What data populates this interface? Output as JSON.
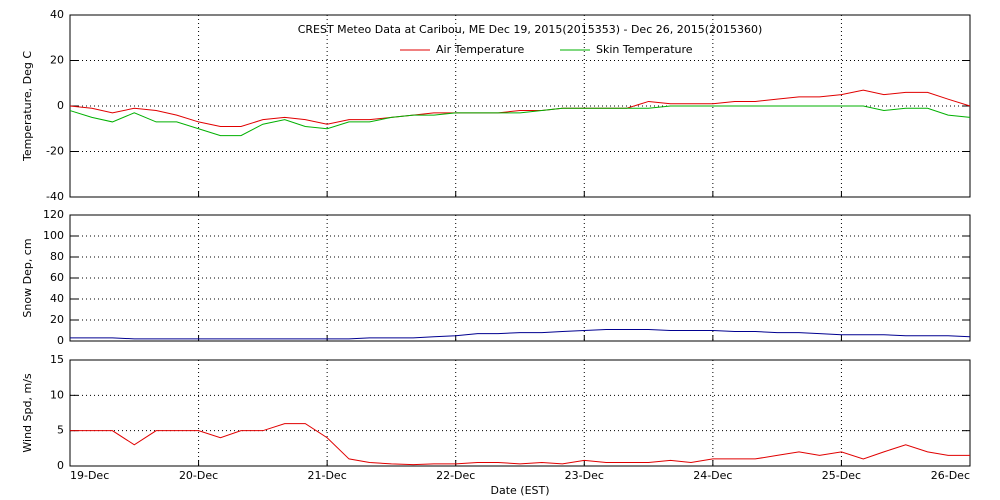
{
  "chart_data": [
    {
      "type": "line",
      "title": "CREST Meteo Data at Caribou, ME   Dec 19, 2015(2015353) - Dec 26, 2015(2015360)",
      "y_label": "Temperature, Deg C",
      "x": [
        19,
        19.17,
        19.33,
        19.5,
        19.67,
        19.83,
        20,
        20.17,
        20.33,
        20.5,
        20.67,
        20.83,
        21,
        21.17,
        21.33,
        21.5,
        21.67,
        21.83,
        22,
        22.17,
        22.33,
        22.5,
        22.67,
        22.83,
        23,
        23.17,
        23.33,
        23.5,
        23.67,
        23.83,
        24,
        24.17,
        24.33,
        24.5,
        24.67,
        24.83,
        25,
        25.17,
        25.33,
        25.5,
        25.67,
        25.83,
        26
      ],
      "xlim": [
        19,
        26
      ],
      "xticks": [
        19,
        20,
        21,
        22,
        23,
        24,
        25,
        26
      ],
      "ylim": [
        -40,
        40
      ],
      "yticks": [
        -40,
        -20,
        0,
        20,
        40
      ],
      "grid": true,
      "series": [
        {
          "name": "Air Temperature",
          "color": "#e00000",
          "values": [
            0,
            -1,
            -3,
            -1,
            -2,
            -4,
            -7,
            -9,
            -9,
            -6,
            -5,
            -6,
            -8,
            -6,
            -6,
            -5,
            -4,
            -3,
            -3,
            -3,
            -3,
            -2,
            -2,
            -1,
            -1,
            -1,
            -1,
            2,
            1,
            1,
            1,
            2,
            2,
            3,
            4,
            4,
            5,
            7,
            5,
            6,
            6,
            3,
            0
          ]
        },
        {
          "name": "Skin Temperature",
          "color": "#00b000",
          "values": [
            -2,
            -5,
            -7,
            -3,
            -7,
            -7,
            -10,
            -13,
            -13,
            -8,
            -6,
            -9,
            -10,
            -7,
            -7,
            -5,
            -4,
            -4,
            -3,
            -3,
            -3,
            -3,
            -2,
            -1,
            -1,
            -1,
            -1,
            -1,
            0,
            0,
            0,
            0,
            0,
            0,
            0,
            0,
            0,
            0,
            -2,
            -1,
            -1,
            -4,
            -5
          ]
        }
      ]
    },
    {
      "type": "line",
      "y_label": "Snow Dep, cm",
      "x": [
        19,
        19.17,
        19.33,
        19.5,
        19.67,
        19.83,
        20,
        20.17,
        20.33,
        20.5,
        20.67,
        20.83,
        21,
        21.17,
        21.33,
        21.5,
        21.67,
        21.83,
        22,
        22.17,
        22.33,
        22.5,
        22.67,
        22.83,
        23,
        23.17,
        23.33,
        23.5,
        23.67,
        23.83,
        24,
        24.17,
        24.33,
        24.5,
        24.67,
        24.83,
        25,
        25.17,
        25.33,
        25.5,
        25.67,
        25.83,
        26
      ],
      "xlim": [
        19,
        26
      ],
      "xticks": [
        19,
        20,
        21,
        22,
        23,
        24,
        25,
        26
      ],
      "ylim": [
        0,
        120
      ],
      "yticks": [
        0,
        20,
        40,
        60,
        80,
        100,
        120
      ],
      "grid": true,
      "series": [
        {
          "color": "#000090",
          "values": [
            3,
            3,
            3,
            2,
            2,
            2,
            2,
            2,
            2,
            2,
            2,
            2,
            2,
            2,
            3,
            3,
            3,
            4,
            5,
            7,
            7,
            8,
            8,
            9,
            10,
            11,
            11,
            11,
            10,
            10,
            10,
            9,
            9,
            8,
            8,
            7,
            6,
            6,
            6,
            5,
            5,
            5,
            4
          ]
        }
      ]
    },
    {
      "type": "line",
      "y_label": "Wind Spd, m/s",
      "x_label": "Date (EST)",
      "x": [
        19,
        19.17,
        19.33,
        19.5,
        19.67,
        19.83,
        20,
        20.17,
        20.33,
        20.5,
        20.67,
        20.83,
        21,
        21.17,
        21.33,
        21.5,
        21.67,
        21.83,
        22,
        22.17,
        22.33,
        22.5,
        22.67,
        22.83,
        23,
        23.17,
        23.33,
        23.5,
        23.67,
        23.83,
        24,
        24.17,
        24.33,
        24.5,
        24.67,
        24.83,
        25,
        25.17,
        25.33,
        25.5,
        25.67,
        25.83,
        26
      ],
      "xlim": [
        19,
        26
      ],
      "xticks": [
        {
          "value": 19,
          "label": "19-Dec"
        },
        {
          "value": 20,
          "label": "20-Dec"
        },
        {
          "value": 21,
          "label": "21-Dec"
        },
        {
          "value": 22,
          "label": "22-Dec"
        },
        {
          "value": 23,
          "label": "23-Dec"
        },
        {
          "value": 24,
          "label": "24-Dec"
        },
        {
          "value": 25,
          "label": "25-Dec"
        },
        {
          "value": 26,
          "label": "26-Dec"
        }
      ],
      "ylim": [
        0,
        15
      ],
      "yticks": [
        0,
        5,
        10,
        15
      ],
      "grid": true,
      "series": [
        {
          "color": "#e00000",
          "values": [
            5,
            5,
            5,
            3,
            5,
            5,
            5,
            4,
            5,
            5,
            6,
            6,
            4,
            1,
            0.5,
            0.3,
            0.2,
            0.3,
            0.3,
            0.5,
            0.5,
            0.3,
            0.5,
            0.3,
            0.8,
            0.5,
            0.5,
            0.5,
            0.8,
            0.5,
            1,
            1,
            1,
            1.5,
            2,
            1.5,
            2,
            1,
            2,
            3,
            2,
            1.5,
            1.5
          ]
        }
      ]
    }
  ]
}
